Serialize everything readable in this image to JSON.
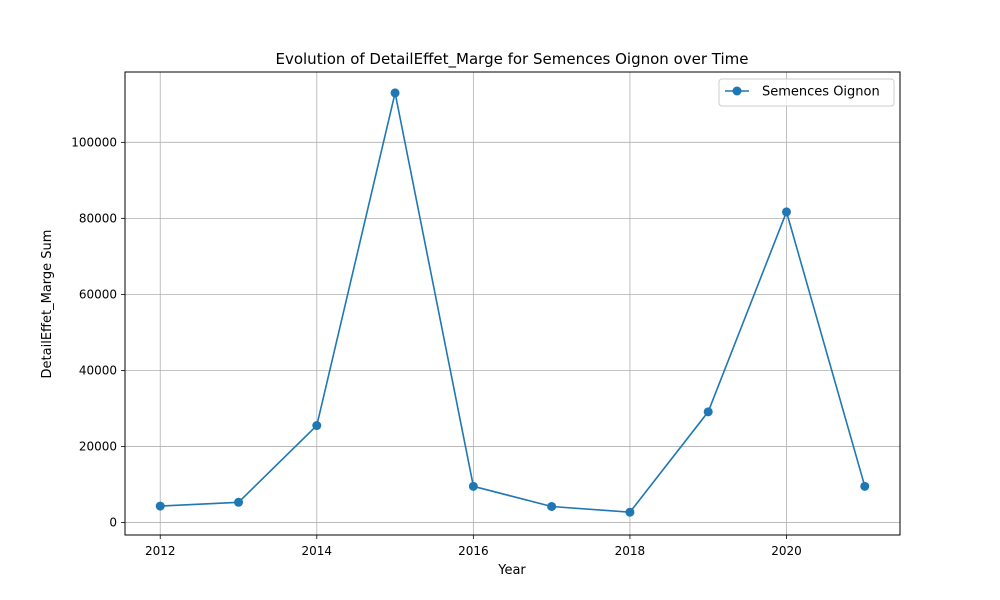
{
  "chart_data": {
    "type": "line",
    "title": "Evolution of DetailEffet_Marge for Semences Oignon over Time",
    "xlabel": "Year",
    "ylabel": "DetailEffet_Marge Sum",
    "x": [
      2012,
      2013,
      2014,
      2015,
      2016,
      2017,
      2018,
      2019,
      2020,
      2021
    ],
    "series": [
      {
        "name": "Semences Oignon",
        "color": "#1f77b4",
        "values": [
          4300,
          5300,
          25500,
          113000,
          9500,
          4200,
          2700,
          29100,
          81700,
          9500
        ]
      }
    ],
    "xlim": [
      2011.55,
      2021.45
    ],
    "ylim": [
      -3300,
      118500
    ],
    "xticks": [
      2012,
      2014,
      2016,
      2018,
      2020
    ],
    "xtick_labels": [
      "2012",
      "2014",
      "2016",
      "2018",
      "2020"
    ],
    "yticks": [
      0,
      20000,
      40000,
      60000,
      80000,
      100000
    ],
    "ytick_labels": [
      "0",
      "20000",
      "40000",
      "60000",
      "80000",
      "100000"
    ],
    "grid": true,
    "legend_position": "top-right"
  }
}
